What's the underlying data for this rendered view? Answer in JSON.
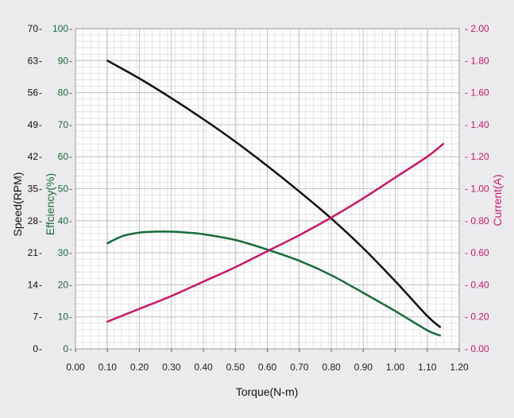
{
  "chart_data": {
    "type": "line",
    "title": "",
    "xlabel": "Torque(N-m)",
    "xlim": [
      0,
      1.2
    ],
    "x_ticks": [
      "0.00",
      "0.10",
      "0.20",
      "0.30",
      "0.40",
      "0.50",
      "0.60",
      "0.70",
      "0.80",
      "0.90",
      "1.00",
      "1.10",
      "1.20"
    ],
    "axes": {
      "speed": {
        "label": "Speed(RPM)",
        "range": [
          0,
          70
        ],
        "ticks": [
          "0",
          "7",
          "14",
          "21",
          "28",
          "35",
          "42",
          "49",
          "56",
          "63",
          "70"
        ],
        "color": "#111111"
      },
      "efficiency": {
        "label": "Effciency(%)",
        "range": [
          0,
          100
        ],
        "ticks": [
          "0",
          "10",
          "20",
          "30",
          "40",
          "50",
          "60",
          "70",
          "80",
          "90",
          "100"
        ],
        "color": "#1a6b3a"
      },
      "current": {
        "label": "Current(A)",
        "range": [
          0,
          2
        ],
        "ticks": [
          "0.00",
          "0.20",
          "0.40",
          "0.60",
          "0.80",
          "1.00",
          "1.20",
          "1.40",
          "1.60",
          "1.80",
          "2.00"
        ],
        "color": "#c8186a"
      }
    },
    "grid": true,
    "legend": "none",
    "series": [
      {
        "axis": "speed",
        "color": "#111111",
        "x": [
          0.1,
          0.2,
          0.3,
          0.4,
          0.5,
          0.6,
          0.7,
          0.8,
          0.9,
          1.0,
          1.1,
          1.14
        ],
        "y": [
          63.0,
          59.1,
          54.8,
          50.2,
          45.3,
          40.0,
          34.4,
          28.5,
          22.0,
          14.8,
          7.2,
          4.8
        ]
      },
      {
        "axis": "efficiency",
        "color": "#1a6b3a",
        "x": [
          0.1,
          0.15,
          0.2,
          0.25,
          0.3,
          0.35,
          0.4,
          0.5,
          0.6,
          0.7,
          0.8,
          0.9,
          1.0,
          1.1,
          1.14
        ],
        "y": [
          33,
          35.3,
          36.3,
          36.6,
          36.6,
          36.3,
          35.8,
          34.0,
          31.0,
          27.5,
          23.0,
          17.5,
          11.8,
          5.8,
          4.2
        ]
      },
      {
        "axis": "current",
        "color": "#c8186a",
        "x": [
          0.1,
          0.2,
          0.3,
          0.4,
          0.5,
          0.6,
          0.7,
          0.8,
          0.9,
          1.0,
          1.1,
          1.15
        ],
        "y": [
          0.17,
          0.25,
          0.33,
          0.42,
          0.51,
          0.61,
          0.71,
          0.82,
          0.94,
          1.07,
          1.2,
          1.28
        ]
      }
    ]
  }
}
